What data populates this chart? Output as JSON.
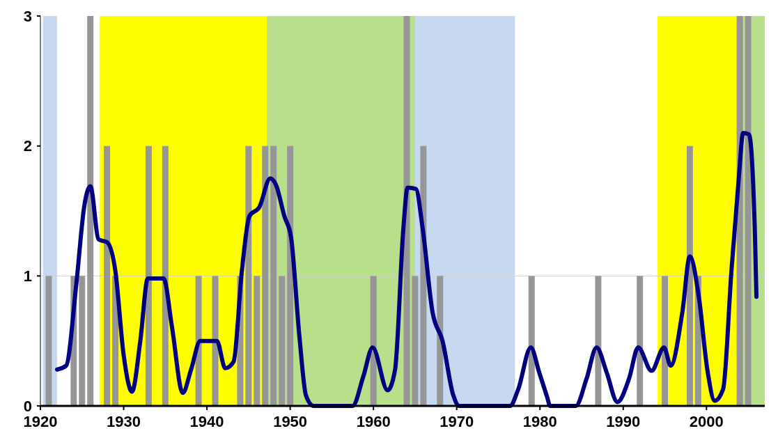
{
  "chart_data": {
    "type": "bar",
    "xlim": [
      1920,
      2007
    ],
    "xticks": [
      1920,
      1930,
      1940,
      1950,
      1960,
      1970,
      1980,
      1990,
      2000
    ],
    "ylim": [
      0,
      3
    ],
    "yticks": [
      0,
      1,
      2,
      3
    ],
    "grid": false,
    "bands": [
      {
        "axis": "x",
        "from": 1920.3,
        "to": 1922,
        "color": "#c6d9f0"
      },
      {
        "axis": "x",
        "from": 1927.1,
        "to": 1947.2,
        "color": "#ffff00"
      },
      {
        "axis": "x",
        "from": 1947.2,
        "to": 1965,
        "color": "#b8e08a"
      },
      {
        "axis": "x",
        "from": 1965,
        "to": 1977,
        "color": "#c6d9f0"
      },
      {
        "axis": "x",
        "from": 1994.1,
        "to": 2003.8,
        "color": "#ffff00"
      },
      {
        "axis": "x",
        "from": 2003.8,
        "to": 2007,
        "color": "#b8e08a"
      }
    ],
    "ref_lines": [
      {
        "axis": "y",
        "value": 1,
        "color": "#d0d0d0"
      }
    ],
    "series": [
      {
        "color": "#969696",
        "x": [
          1921,
          1924,
          1925,
          1926,
          1928,
          1929,
          1933,
          1935,
          1939,
          1941,
          1944,
          1945,
          1946,
          1947,
          1948,
          1949,
          1950,
          1960,
          1964,
          1965,
          1966,
          1968,
          1979,
          1987,
          1992,
          1995,
          1998,
          1999,
          2004,
          2005
        ],
        "values": [
          1,
          1,
          1,
          3,
          2,
          1,
          2,
          2,
          1,
          1,
          1,
          2,
          1,
          2,
          2,
          1,
          2,
          1,
          3,
          1,
          2,
          1,
          1,
          1,
          1,
          1,
          2,
          1,
          3,
          3
        ]
      },
      {
        "type": "line",
        "color": "#000080",
        "x": [
          1922.0,
          1923.1,
          1924.3,
          1925.3,
          1926.0,
          1927.0,
          1928.0,
          1929.0,
          1930.0,
          1931.0,
          1932.0,
          1932.9,
          1934.8,
          1935.8,
          1937.1,
          1938.1,
          1939.2,
          1941.2,
          1942.2,
          1943.2,
          1944.2,
          1945.1,
          1946.3,
          1947.6,
          1948.3,
          1949.3,
          1950.1,
          1951.1,
          1951.9,
          1952.8,
          1957.5,
          1958.8,
          1959.9,
          1961.7,
          1962.6,
          1963.6,
          1964.1,
          1965.1,
          1965.9,
          1967.1,
          1968.3,
          1969.6,
          1970.3,
          1976.4,
          1977.4,
          1978.9,
          1979.9,
          1980.9,
          1981.2,
          1984.3,
          1985.6,
          1986.8,
          1988.0,
          1989.3,
          1990.7,
          1991.8,
          1993.4,
          1994.9,
          1995.7,
          1997.1,
          1998.0,
          1999.1,
          2000.1,
          2001.0,
          2002.0,
          2003.0,
          2003.9,
          2004.4,
          2005.1,
          2005.8,
          2006.0
        ],
        "values": [
          0.28,
          0.31,
          0.93,
          1.55,
          1.69,
          1.28,
          1.26,
          1.04,
          0.39,
          0.11,
          0.5,
          0.98,
          0.98,
          0.61,
          0.1,
          0.28,
          0.5,
          0.5,
          0.29,
          0.34,
          1.04,
          1.46,
          1.53,
          1.75,
          1.7,
          1.46,
          1.3,
          0.54,
          0.08,
          0,
          0,
          0.23,
          0.45,
          0.12,
          0.28,
          1.37,
          1.68,
          1.67,
          1.37,
          0.72,
          0.5,
          0.08,
          0,
          0,
          0.13,
          0.45,
          0.26,
          0.06,
          0,
          0,
          0.21,
          0.45,
          0.26,
          0.03,
          0.21,
          0.45,
          0.27,
          0.45,
          0.31,
          0.72,
          1.15,
          0.83,
          0.28,
          0.04,
          0.13,
          1.04,
          1.77,
          2.1,
          2.09,
          1.37,
          0.84
        ]
      }
    ]
  }
}
